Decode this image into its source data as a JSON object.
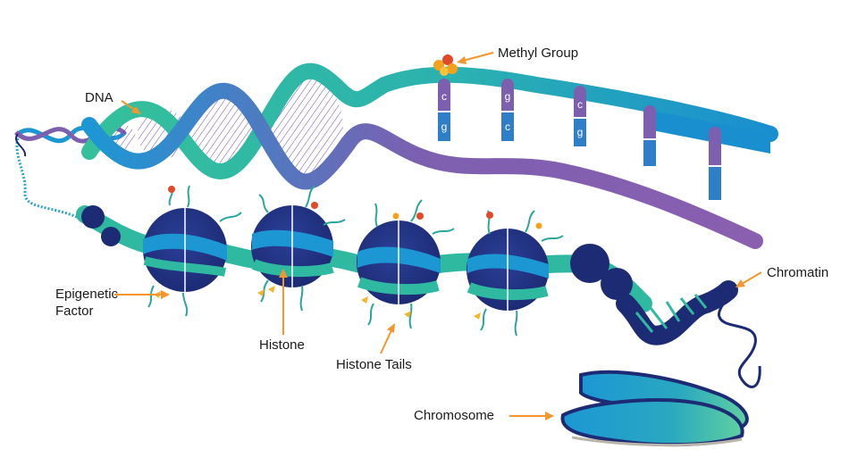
{
  "labels": {
    "dna": "DNA",
    "methyl_group": "Methyl Group",
    "chromatin": "Chromatin",
    "epigenetic_factor_line1": "Epigenetic",
    "epigenetic_factor_line2": "Factor",
    "histone": "Histone",
    "histone_tails": "Histone Tails",
    "chromosome": "Chromosome"
  },
  "base_pairs": [
    {
      "top": "c",
      "bottom": "g"
    },
    {
      "top": "g",
      "bottom": "c"
    },
    {
      "top": "c",
      "bottom": "g"
    },
    {
      "top": "",
      "bottom": ""
    },
    {
      "top": "",
      "bottom": ""
    }
  ],
  "colors": {
    "teal": "#2fb9a0",
    "blue": "#1d97d4",
    "purple": "#7d5fb0",
    "navy": "#1d2b75",
    "arrow": "#f3962d",
    "methyl": "#f5a11d"
  }
}
